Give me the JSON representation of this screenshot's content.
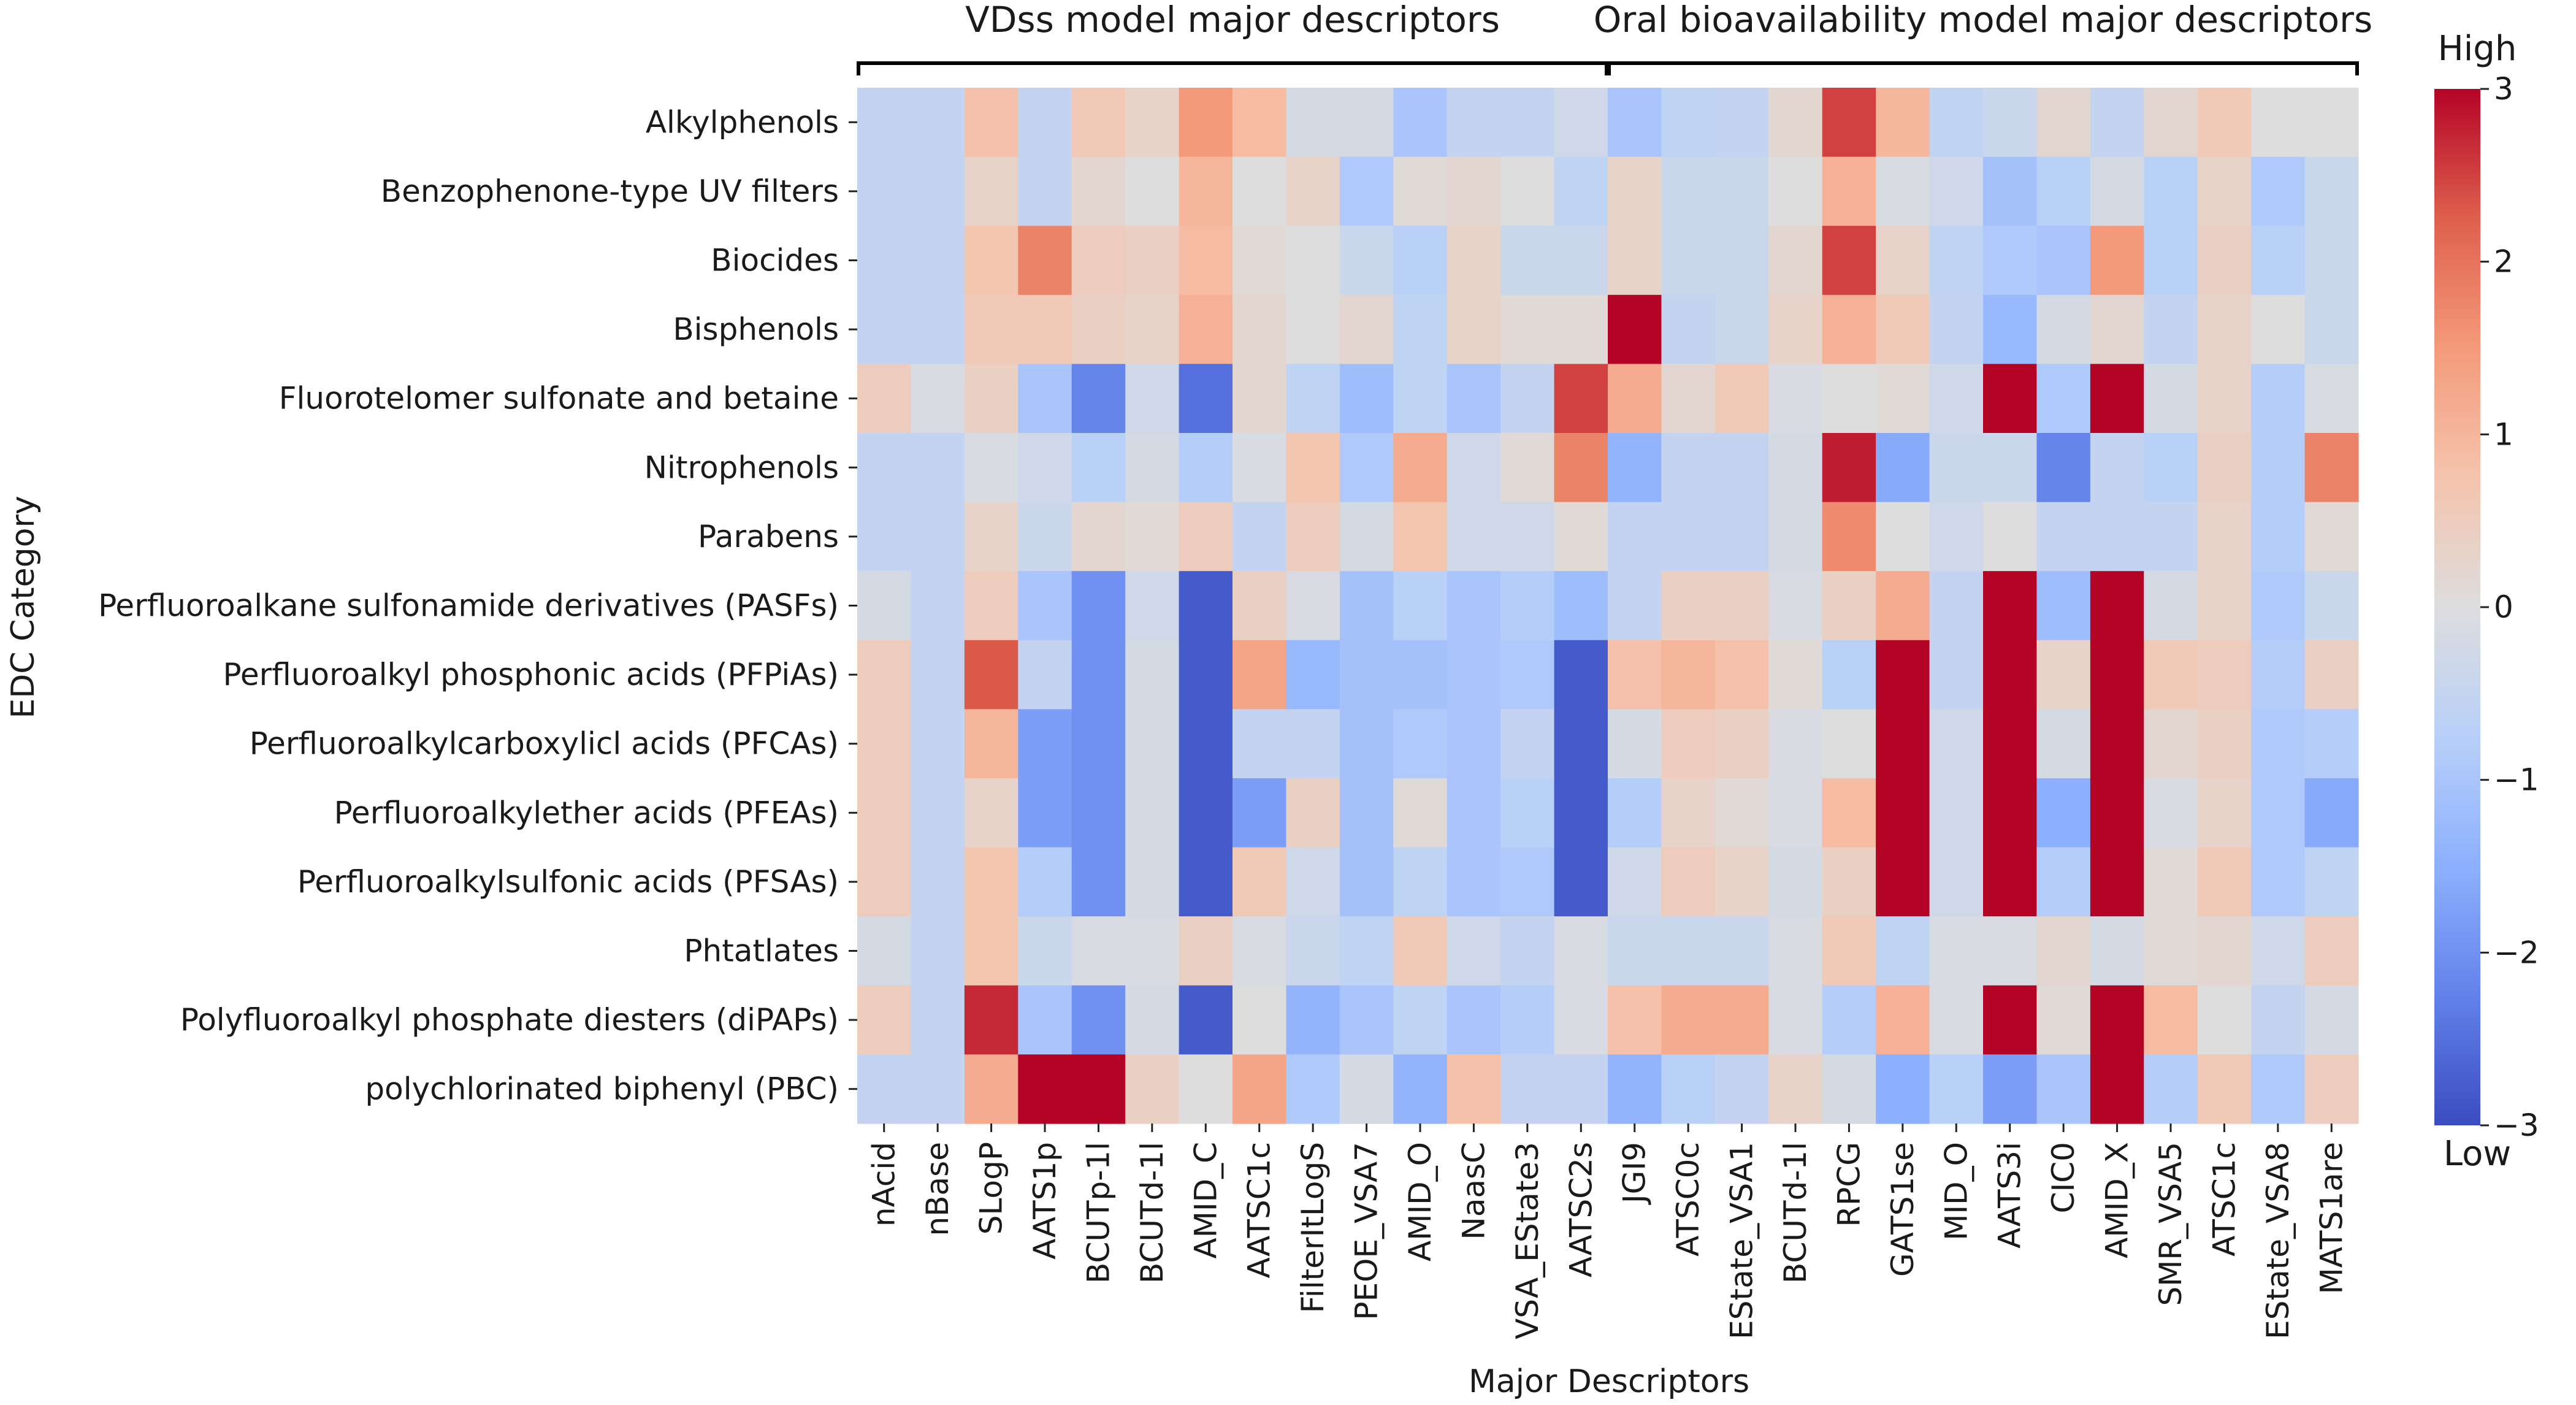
{
  "chart_data": {
    "type": "heatmap",
    "title": "",
    "xlabel": "Major Descriptors",
    "ylabel": "EDC Category",
    "group_labels": [
      {
        "text": "VDss model major descriptors",
        "from": "nAcid",
        "to": "AATSC2s"
      },
      {
        "text": "Oral bioavailability model major descriptors",
        "from": "JGI9",
        "to": "MATS1are"
      }
    ],
    "colorbar": {
      "colormap": "coolwarm",
      "vmin": -3,
      "vmax": 3,
      "ticks": [
        -3,
        -2,
        -1,
        0,
        1,
        2,
        3
      ],
      "tick_labels": [
        "−3",
        "−2",
        "−1",
        "0",
        "1",
        "2",
        "3"
      ],
      "high_label": "High",
      "low_label": "Low"
    },
    "columns": [
      "nAcid",
      "nBase",
      "SLogP",
      "AATS1p",
      "BCUTp-1l",
      "BCUTd-1l",
      "AMID_C",
      "AATSC1c",
      "FilterItLogS",
      "PEOE_VSA7",
      "AMID_O",
      "NaasC",
      "VSA_EState3",
      "AATSC2s",
      "JGI9",
      "ATSC0c",
      "EState_VSA1",
      "BCUTd-1l",
      "RPCG",
      "GATS1se",
      "MID_O",
      "AATS3i",
      "CIC0",
      "AMID_X",
      "SMR_VSA5",
      "ATSC1c",
      "EState_VSA8",
      "MATS1are"
    ],
    "rows": [
      "Alkylphenols",
      "Benzophenone-type UV filters",
      "Biocides",
      "Bisphenols",
      "Fluorotelomer sulfonate and betaine",
      "Nitrophenols",
      "Parabens",
      "Perfluoroalkane sulfonamide derivatives (PASFs)",
      "Perfluoroalkyl phosphonic acids (PFPiAs)",
      "Perfluoroalkylcarboxylicl acids (PFCAs)",
      "Perfluoroalkylether acids (PFEAs)",
      "Perfluoroalkylsulfonic acids (PFSAs)",
      "Phtatlates",
      "Polyfluoroalkyl phosphate diesters (diPAPs)",
      "polychlorinated biphenyl (PBC)"
    ],
    "values": [
      [
        -0.5,
        -0.5,
        0.8,
        -0.5,
        0.6,
        0.3,
        1.5,
        0.9,
        -0.2,
        -0.2,
        -1.0,
        -0.5,
        -0.5,
        -0.3,
        -1.0,
        -0.6,
        -0.5,
        0.2,
        2.5,
        1.0,
        -0.6,
        -0.4,
        0.2,
        -0.5,
        0.2,
        0.6,
        0.0,
        0.0
      ],
      [
        -0.5,
        -0.5,
        0.3,
        -0.5,
        0.2,
        0.0,
        1.0,
        0.0,
        0.3,
        -0.9,
        0.1,
        0.2,
        0.0,
        -0.6,
        0.3,
        -0.4,
        -0.4,
        0.0,
        1.1,
        -0.1,
        -0.3,
        -1.1,
        -0.7,
        -0.2,
        -0.7,
        0.3,
        -0.9,
        -0.4
      ],
      [
        -0.5,
        -0.5,
        0.7,
        1.8,
        0.5,
        0.4,
        0.9,
        0.1,
        0.0,
        -0.4,
        -0.7,
        0.3,
        -0.4,
        -0.4,
        0.3,
        -0.4,
        -0.4,
        0.2,
        2.5,
        0.3,
        -0.6,
        -0.9,
        -1.0,
        1.5,
        -0.7,
        0.4,
        -0.7,
        -0.4
      ],
      [
        -0.5,
        -0.5,
        0.6,
        0.6,
        0.4,
        0.3,
        1.1,
        0.2,
        0.0,
        0.2,
        -0.6,
        0.3,
        0.1,
        0.1,
        3.0,
        -0.5,
        -0.4,
        0.3,
        1.1,
        0.6,
        -0.5,
        -1.3,
        -0.2,
        0.2,
        -0.5,
        0.3,
        0.0,
        -0.4
      ],
      [
        0.5,
        -0.1,
        0.4,
        -1.0,
        -2.2,
        -0.3,
        -2.5,
        0.2,
        -0.6,
        -1.2,
        -0.6,
        -1.0,
        -0.5,
        2.5,
        1.2,
        0.2,
        0.6,
        -0.1,
        0.0,
        0.1,
        -0.3,
        3.0,
        -0.9,
        3.0,
        -0.2,
        0.3,
        -0.8,
        -0.1
      ],
      [
        -0.5,
        -0.5,
        -0.1,
        -0.3,
        -0.7,
        -0.2,
        -0.8,
        -0.1,
        0.7,
        -0.9,
        1.2,
        -0.3,
        0.1,
        1.8,
        -1.4,
        -0.5,
        -0.5,
        -0.2,
        2.8,
        -1.6,
        -0.4,
        -0.4,
        -2.2,
        -0.5,
        -0.7,
        0.4,
        -0.8,
        1.8
      ],
      [
        -0.5,
        -0.5,
        0.3,
        -0.4,
        0.2,
        0.1,
        0.5,
        -0.5,
        0.5,
        -0.2,
        0.7,
        -0.3,
        -0.3,
        0.1,
        -0.5,
        -0.5,
        -0.5,
        -0.2,
        1.7,
        0.0,
        -0.3,
        0.0,
        -0.5,
        -0.5,
        -0.5,
        0.3,
        -0.8,
        0.1
      ],
      [
        -0.2,
        -0.5,
        0.5,
        -1.0,
        -2.0,
        -0.3,
        -2.8,
        0.4,
        -0.1,
        -1.1,
        -0.7,
        -1.0,
        -0.8,
        -1.2,
        -0.5,
        0.4,
        0.4,
        -0.1,
        0.4,
        1.2,
        -0.5,
        3.0,
        -1.2,
        3.0,
        -0.2,
        0.3,
        -0.9,
        -0.4
      ],
      [
        0.5,
        -0.5,
        2.3,
        -0.5,
        -2.0,
        -0.2,
        -2.8,
        1.3,
        -1.3,
        -1.1,
        -1.1,
        -1.0,
        -0.9,
        -2.8,
        0.8,
        1.0,
        0.8,
        0.1,
        -0.7,
        3.0,
        -0.5,
        3.0,
        0.3,
        3.0,
        0.6,
        0.5,
        -0.8,
        0.4
      ],
      [
        0.5,
        -0.5,
        1.0,
        -1.8,
        -2.0,
        -0.2,
        -2.8,
        -0.5,
        -0.5,
        -1.1,
        -0.9,
        -1.0,
        -0.5,
        -2.8,
        -0.2,
        0.5,
        0.4,
        -0.1,
        0.0,
        3.0,
        -0.3,
        3.0,
        -0.2,
        3.0,
        0.2,
        0.4,
        -0.9,
        -0.8
      ],
      [
        0.5,
        -0.5,
        0.3,
        -1.8,
        -2.0,
        -0.2,
        -2.8,
        -1.8,
        0.4,
        -1.1,
        0.1,
        -1.0,
        -0.7,
        -2.8,
        -0.8,
        0.3,
        0.1,
        -0.1,
        0.9,
        3.0,
        -0.3,
        3.0,
        -1.5,
        3.0,
        -0.1,
        0.3,
        -0.9,
        -1.6
      ],
      [
        0.5,
        -0.5,
        0.7,
        -0.8,
        -2.0,
        -0.2,
        -2.8,
        0.6,
        -0.3,
        -1.1,
        -0.6,
        -1.0,
        -0.9,
        -2.8,
        -0.3,
        0.5,
        0.3,
        -0.2,
        0.4,
        3.0,
        -0.3,
        3.0,
        -0.8,
        3.0,
        0.1,
        0.6,
        -0.9,
        -0.6
      ],
      [
        -0.2,
        -0.5,
        0.7,
        -0.4,
        -0.1,
        -0.1,
        0.4,
        -0.1,
        -0.4,
        -0.6,
        0.6,
        -0.3,
        -0.5,
        -0.1,
        -0.4,
        -0.4,
        -0.4,
        -0.1,
        0.6,
        -0.6,
        -0.1,
        -0.1,
        0.2,
        -0.2,
        0.1,
        0.2,
        -0.3,
        0.5
      ],
      [
        0.5,
        -0.5,
        2.7,
        -1.0,
        -2.0,
        -0.2,
        -2.8,
        0.0,
        -1.4,
        -1.0,
        -0.6,
        -1.0,
        -0.8,
        -0.1,
        0.8,
        1.2,
        1.2,
        -0.1,
        -0.8,
        1.1,
        -0.1,
        3.0,
        0.1,
        3.0,
        0.9,
        0.0,
        -0.5,
        -0.2
      ],
      [
        -0.5,
        -0.5,
        1.2,
        3.0,
        3.0,
        0.4,
        0.0,
        1.3,
        -0.9,
        -0.2,
        -1.4,
        0.8,
        -0.5,
        -0.5,
        -1.4,
        -0.7,
        -0.5,
        0.3,
        -0.2,
        -1.5,
        -0.7,
        -1.8,
        -1.0,
        3.0,
        -0.8,
        0.6,
        -0.9,
        0.5
      ]
    ]
  }
}
